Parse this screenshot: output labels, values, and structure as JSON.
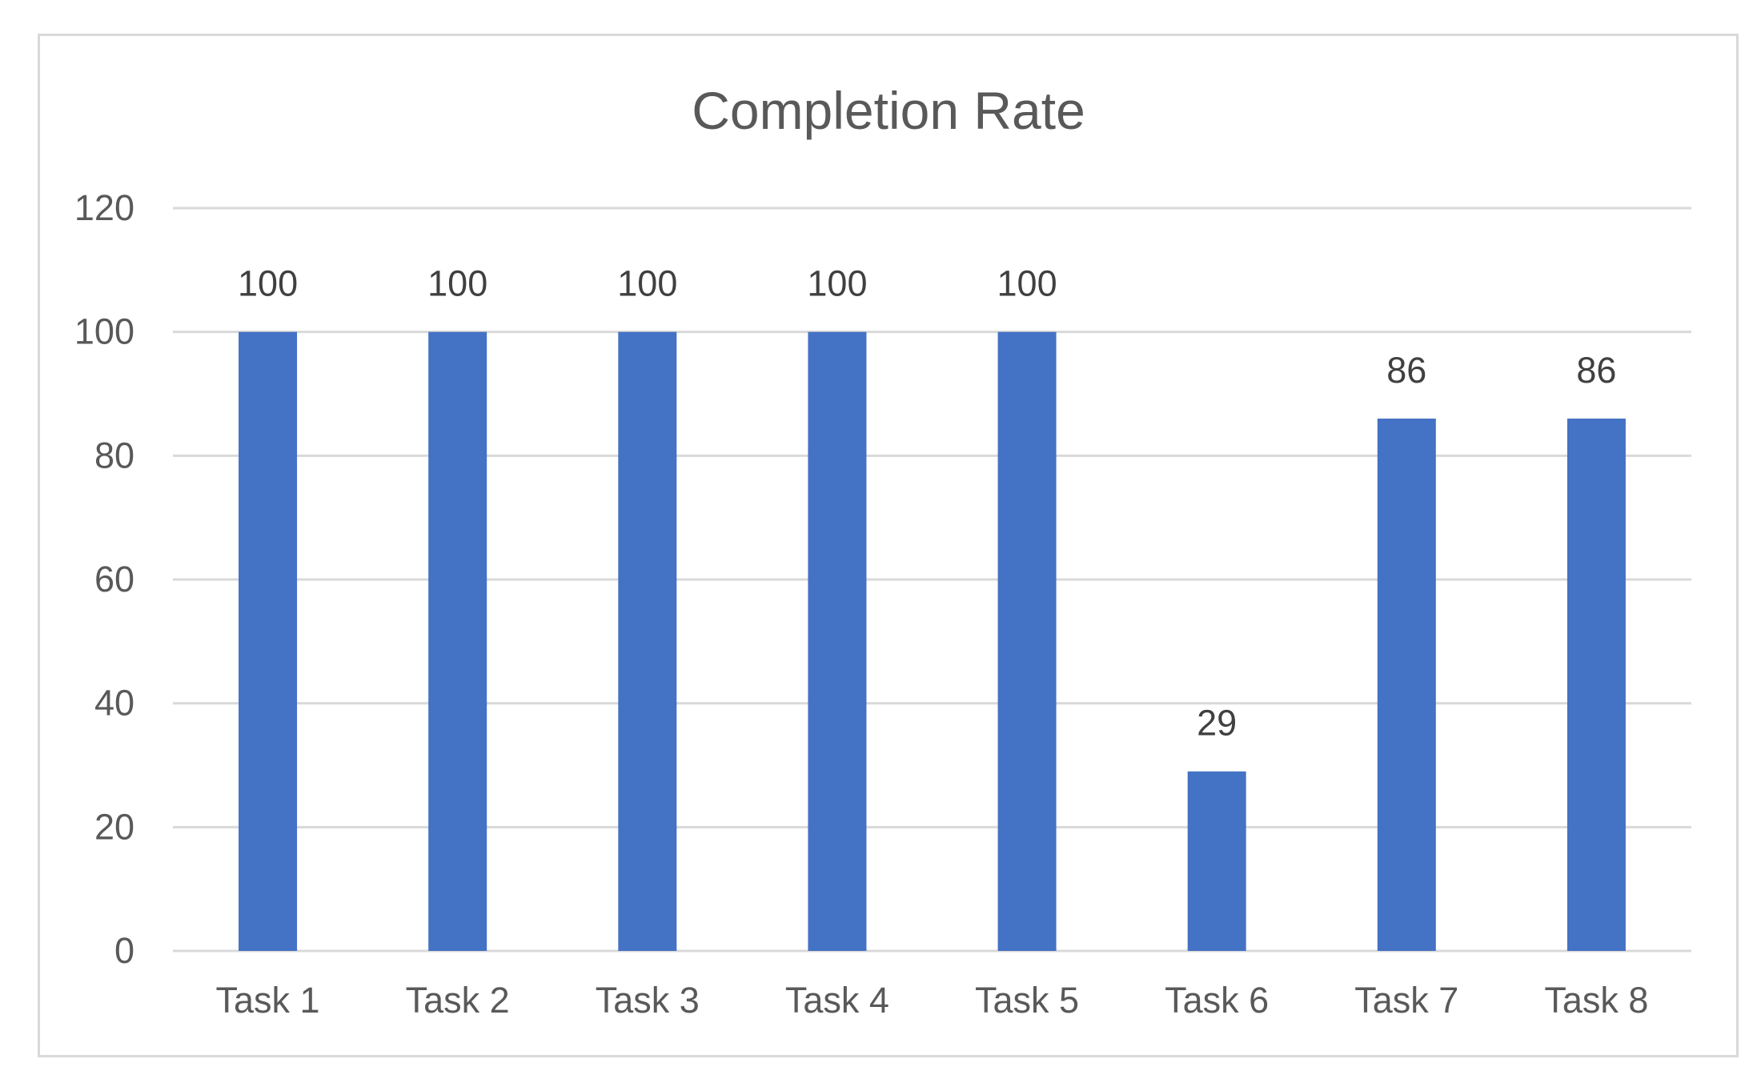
{
  "chart_data": {
    "type": "bar",
    "title": "Completion Rate",
    "xlabel": "",
    "ylabel": "",
    "categories": [
      "Task 1",
      "Task 2",
      "Task 3",
      "Task 4",
      "Task 5",
      "Task 6",
      "Task 7",
      "Task 8"
    ],
    "values": [
      100,
      100,
      100,
      100,
      100,
      29,
      86,
      86
    ],
    "data_labels": [
      "100",
      "100",
      "100",
      "100",
      "100",
      "29",
      "86",
      "86"
    ],
    "ylim": [
      0,
      120
    ],
    "yticks": [
      0,
      20,
      40,
      60,
      80,
      100,
      120
    ],
    "ytick_labels": [
      "0",
      "20",
      "40",
      "60",
      "80",
      "100",
      "120"
    ],
    "grid": true,
    "legend": "none",
    "bar_color": "#4472c4",
    "grid_color": "#d9d9d9"
  }
}
